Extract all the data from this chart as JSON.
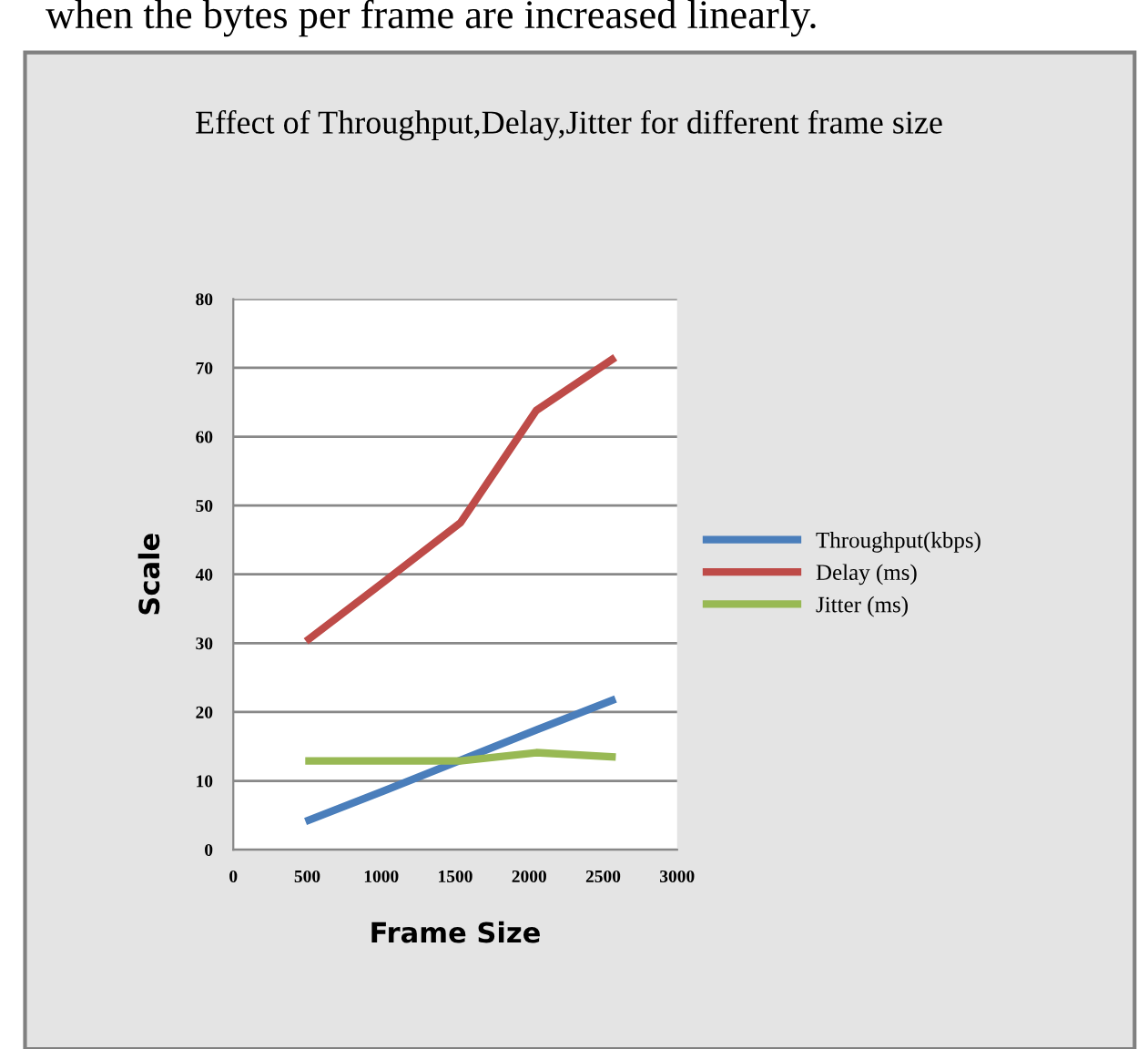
{
  "chart_data": {
    "type": "line",
    "title": "Effect of Throughput,Delay,Jitter for different frame size",
    "xlabel": "Frame Size",
    "ylabel": "Scale",
    "x": [
      512,
      1024,
      1536,
      2048,
      2560
    ],
    "series": [
      {
        "name": "Throughput(kbps)",
        "color": "#4a7ebb",
        "values": [
          4.3,
          8.6,
          13.0,
          17.4,
          21.7
        ]
      },
      {
        "name": "Delay (ms)",
        "color": "#be4b48",
        "values": [
          30.6,
          39.0,
          47.5,
          63.8,
          71.2
        ]
      },
      {
        "name": "Jitter (ms)",
        "color": "#98b954",
        "values": [
          12.9,
          12.9,
          12.9,
          14.1,
          13.5
        ]
      }
    ],
    "xlim": [
      0,
      3000
    ],
    "xticks": [
      0,
      500,
      1000,
      1500,
      2000,
      2500,
      3000
    ],
    "ylim": [
      0,
      80
    ],
    "yticks": [
      0,
      10,
      20,
      30,
      40,
      50,
      60,
      70,
      80
    ],
    "grid": "y",
    "legend": "right",
    "marker": "none",
    "line_style": "solid",
    "annotations": [
      "when the bytes per frame are increased linearly."
    ]
  }
}
